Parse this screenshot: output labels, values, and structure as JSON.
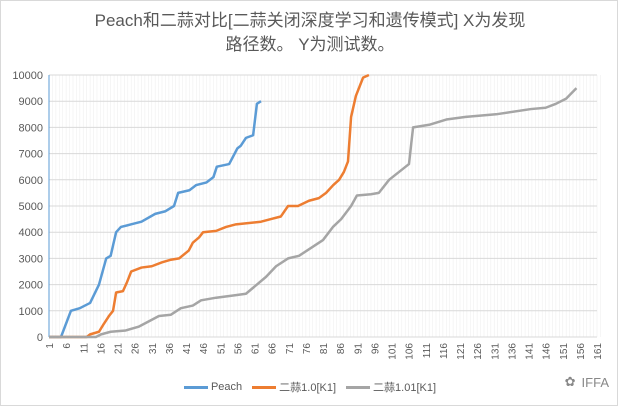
{
  "chart_data": {
    "type": "line",
    "title_line1": "Peach和二蒜对比[二蒜关闭深度学习和遗传模式]  X为发现",
    "title_line2": "路径数。 Y为测试数。",
    "xlabel": "",
    "ylabel": "",
    "ylim": [
      0,
      10000
    ],
    "yticks": [
      "0",
      "1000",
      "2000",
      "3000",
      "4000",
      "5000",
      "6000",
      "7000",
      "8000",
      "9000",
      "10000"
    ],
    "xlim": [
      1,
      161
    ],
    "xticks": [
      "1",
      "6",
      "11",
      "16",
      "21",
      "26",
      "31",
      "36",
      "41",
      "46",
      "51",
      "56",
      "61",
      "66",
      "71",
      "76",
      "81",
      "86",
      "91",
      "96",
      "101",
      "106",
      "111",
      "116",
      "121",
      "126",
      "131",
      "136",
      "141",
      "146",
      "151",
      "156",
      "161"
    ],
    "grid": true,
    "legend_position": "bottom",
    "series": [
      {
        "name": "Peach",
        "color": "#5b9bd5",
        "points": [
          [
            1,
            0
          ],
          [
            4.5,
            0
          ],
          [
            7.4,
            1000
          ],
          [
            10,
            1100
          ],
          [
            13,
            1300
          ],
          [
            15.6,
            2000
          ],
          [
            17.7,
            3000
          ],
          [
            19,
            3100
          ],
          [
            20.6,
            4000
          ],
          [
            22,
            4200
          ],
          [
            25,
            4300
          ],
          [
            28,
            4400
          ],
          [
            32,
            4700
          ],
          [
            35,
            4800
          ],
          [
            37.5,
            5000
          ],
          [
            38.7,
            5500
          ],
          [
            42,
            5600
          ],
          [
            44,
            5800
          ],
          [
            47,
            5900
          ],
          [
            49,
            6100
          ],
          [
            50,
            6500
          ],
          [
            53.6,
            6600
          ],
          [
            56,
            7200
          ],
          [
            57,
            7300
          ],
          [
            58.5,
            7600
          ],
          [
            60.6,
            7700
          ],
          [
            61.7,
            8900
          ],
          [
            62.9,
            9000
          ]
        ]
      },
      {
        "name": "二蒜1.0[K1]",
        "color": "#ed7d31",
        "points": [
          [
            1,
            0
          ],
          [
            12,
            0
          ],
          [
            13,
            100
          ],
          [
            15.6,
            200
          ],
          [
            17,
            500
          ],
          [
            18.5,
            800
          ],
          [
            19.7,
            1000
          ],
          [
            20.6,
            1700
          ],
          [
            22.6,
            1750
          ],
          [
            23.8,
            2100
          ],
          [
            25,
            2500
          ],
          [
            28,
            2650
          ],
          [
            31,
            2700
          ],
          [
            34,
            2850
          ],
          [
            36.6,
            2950
          ],
          [
            39,
            3000
          ],
          [
            41.8,
            3300
          ],
          [
            43,
            3600
          ],
          [
            44.8,
            3800
          ],
          [
            46,
            4000
          ],
          [
            49.8,
            4050
          ],
          [
            52.7,
            4200
          ],
          [
            55.6,
            4300
          ],
          [
            62.9,
            4400
          ],
          [
            65.8,
            4500
          ],
          [
            68.7,
            4600
          ],
          [
            70.8,
            5000
          ],
          [
            73.7,
            5000
          ],
          [
            76.9,
            5200
          ],
          [
            79.8,
            5300
          ],
          [
            81.9,
            5500
          ],
          [
            84,
            5800
          ],
          [
            85.7,
            6000
          ],
          [
            87.1,
            6300
          ],
          [
            88.3,
            6700
          ],
          [
            89.2,
            8400
          ],
          [
            90.6,
            9200
          ],
          [
            92.7,
            9900
          ],
          [
            94.4,
            10000
          ]
        ]
      },
      {
        "name": "二蒜1.01[K1]",
        "color": "#a5a5a5",
        "points": [
          [
            1,
            0
          ],
          [
            14.7,
            0
          ],
          [
            16.2,
            100
          ],
          [
            19,
            200
          ],
          [
            23.4,
            250
          ],
          [
            27.3,
            400
          ],
          [
            30.2,
            600
          ],
          [
            33.1,
            800
          ],
          [
            36.6,
            850
          ],
          [
            39.5,
            1100
          ],
          [
            43,
            1200
          ],
          [
            45.4,
            1400
          ],
          [
            49.8,
            1500
          ],
          [
            55.6,
            1600
          ],
          [
            58.5,
            1650
          ],
          [
            61.7,
            2000
          ],
          [
            64.4,
            2300
          ],
          [
            67.3,
            2700
          ],
          [
            70.8,
            3000
          ],
          [
            74,
            3100
          ],
          [
            77.5,
            3400
          ],
          [
            81,
            3700
          ],
          [
            83.9,
            4200
          ],
          [
            86.3,
            4500
          ],
          [
            89.2,
            5000
          ],
          [
            90.9,
            5400
          ],
          [
            95,
            5450
          ],
          [
            97.3,
            5500
          ],
          [
            100.3,
            6000
          ],
          [
            103.2,
            6300
          ],
          [
            106.1,
            6600
          ],
          [
            107.3,
            8000
          ],
          [
            112,
            8100
          ],
          [
            117,
            8300
          ],
          [
            122.7,
            8400
          ],
          [
            131.5,
            8500
          ],
          [
            141.7,
            8700
          ],
          [
            146,
            8750
          ],
          [
            149,
            8900
          ],
          [
            152,
            9100
          ],
          [
            155,
            9500
          ]
        ]
      }
    ]
  },
  "watermark": "IFFA"
}
